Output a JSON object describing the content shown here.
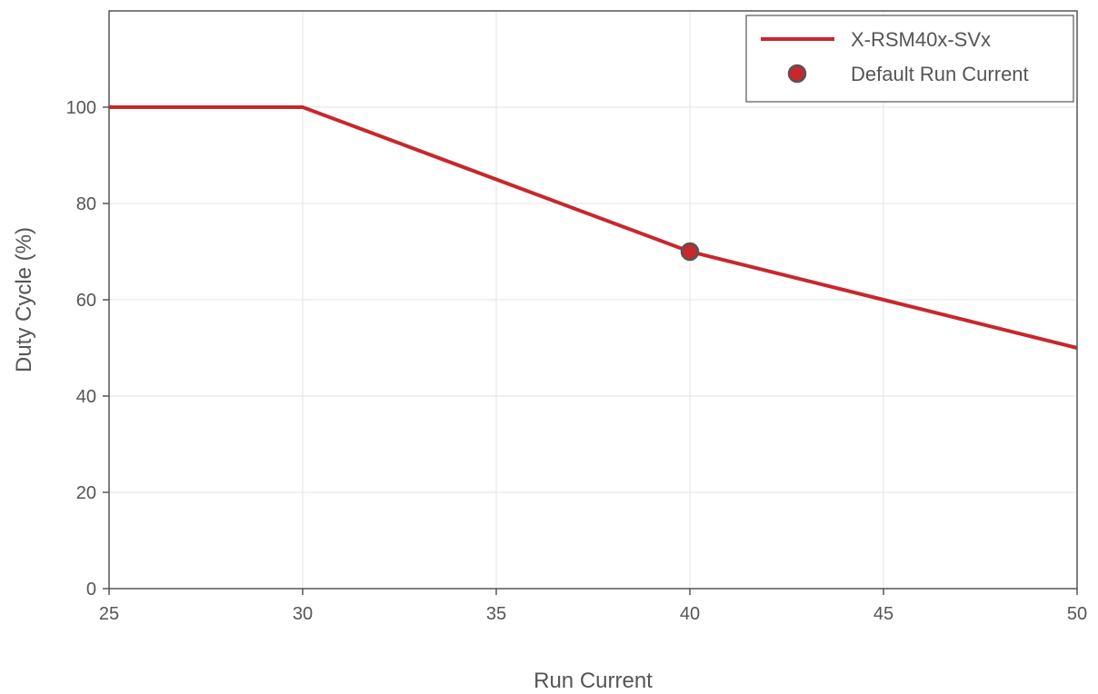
{
  "chart_data": {
    "type": "line",
    "title": "",
    "xlabel": "Run Current",
    "ylabel": "Duty Cycle (%)",
    "xlim": [
      25,
      50
    ],
    "ylim": [
      0,
      120
    ],
    "x_ticks": [
      25,
      30,
      35,
      40,
      45,
      50
    ],
    "y_ticks": [
      0,
      20,
      40,
      60,
      80,
      100
    ],
    "grid": true,
    "legend_position": "top-right",
    "series": [
      {
        "name": "X-RSM40x-SVx",
        "kind": "line",
        "color": "#c8272d",
        "x": [
          25,
          30,
          40,
          45,
          50
        ],
        "y": [
          100,
          100,
          70,
          60,
          50
        ]
      },
      {
        "name": "Default Run Current",
        "kind": "marker",
        "color": "#c8272d",
        "edge_color": "#555555",
        "x": [
          40
        ],
        "y": [
          70
        ]
      }
    ]
  }
}
